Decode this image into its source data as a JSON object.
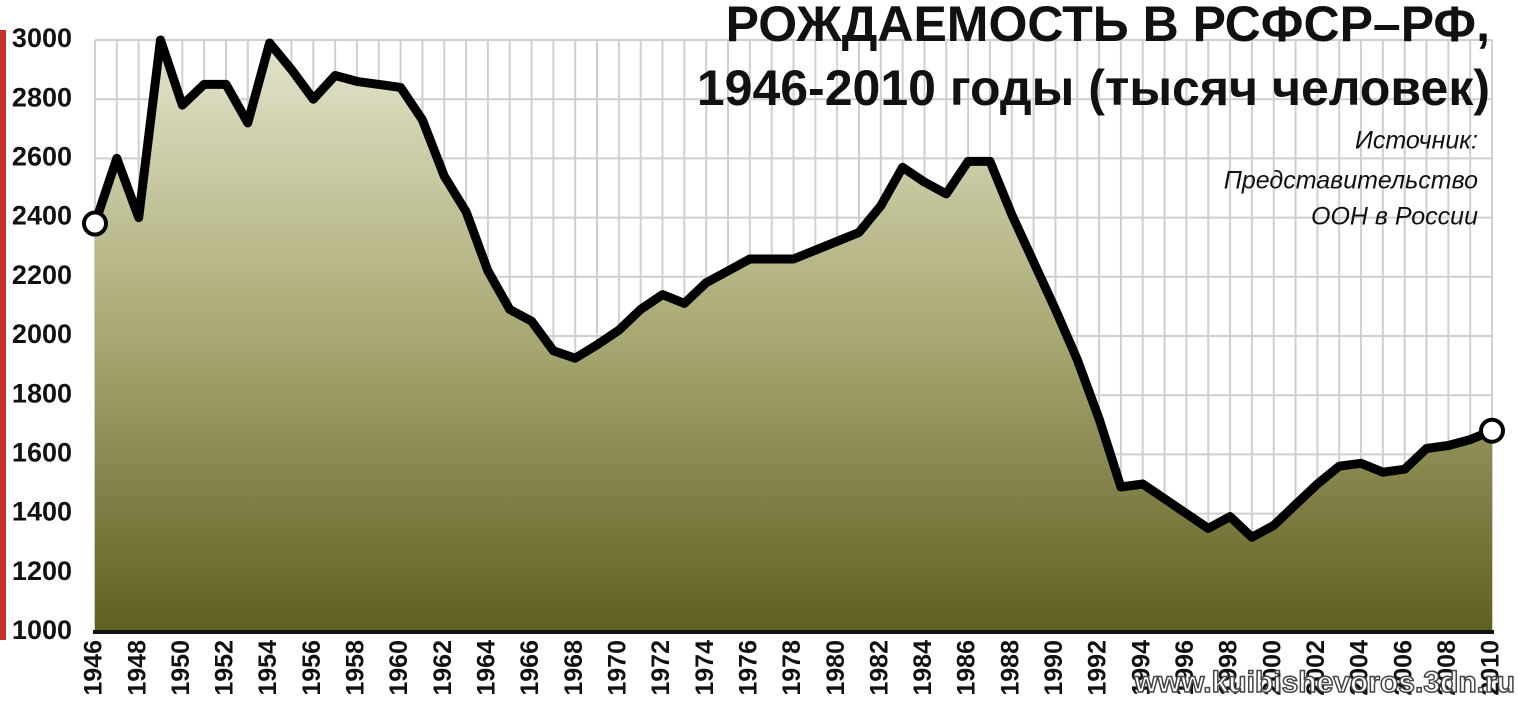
{
  "chart_data": {
    "type": "line",
    "title": [
      "РОЖДАЕМОСТЬ В РСФСР–РФ,",
      "1946-2010 годы (тысяч человек)"
    ],
    "source": [
      "Источник:",
      "Представительство",
      "ООН в России"
    ],
    "watermark": "www.kuibishevoros.3dn.ru",
    "categories": [
      "1946",
      null,
      "1948",
      null,
      "1950",
      null,
      "1952",
      null,
      "1954",
      null,
      "1956",
      null,
      "1958",
      null,
      "1960",
      null,
      "1962",
      null,
      "1964",
      null,
      "1966",
      null,
      "1968",
      null,
      "1970",
      null,
      "1972",
      null,
      "1974",
      null,
      "1976",
      null,
      "1978",
      null,
      "1980",
      null,
      "1982",
      null,
      "1984",
      null,
      "1986",
      null,
      "1988",
      null,
      "1990",
      null,
      "1992",
      null,
      "1994",
      null,
      "1996",
      null,
      "1998",
      null,
      "2000",
      null,
      "2002",
      null,
      "2004",
      null,
      "2006",
      null,
      "2008",
      null,
      "2010"
    ],
    "values": [
      2380,
      2600,
      2400,
      3000,
      2780,
      2850,
      2850,
      2720,
      2990,
      2900,
      2800,
      2880,
      2860,
      2850,
      2840,
      2730,
      2540,
      2420,
      2220,
      2090,
      2050,
      1950,
      1925,
      1970,
      2020,
      2090,
      2140,
      2110,
      2180,
      2220,
      2260,
      2260,
      2260,
      2290,
      2320,
      2350,
      2440,
      2570,
      2520,
      2480,
      2590,
      2590,
      2410,
      2250,
      2090,
      1920,
      1720,
      1490,
      1500,
      1450,
      1400,
      1350,
      1390,
      1320,
      1360,
      1430,
      1500,
      1560,
      1570,
      1540,
      1550,
      1620,
      1630,
      1650,
      1680
    ],
    "color": "#000000",
    "ylim": [
      1000,
      3000
    ],
    "yticks": [
      1000,
      1200,
      1400,
      1600,
      1800,
      2000,
      2200,
      2400,
      2600,
      2800,
      3000
    ],
    "grid": true
  }
}
